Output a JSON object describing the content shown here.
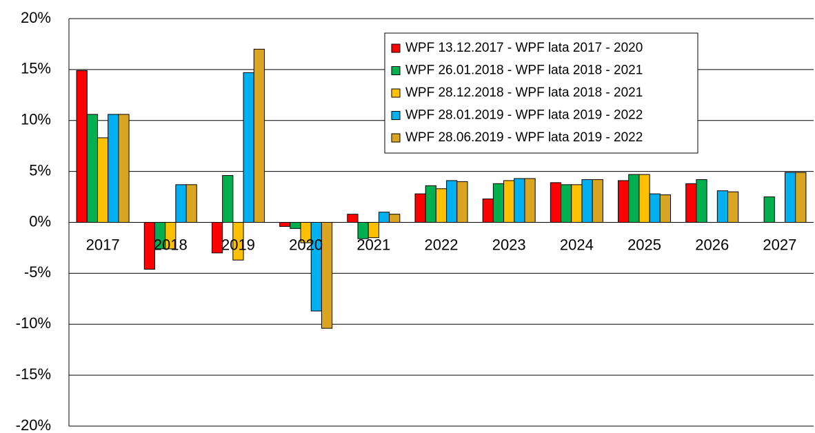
{
  "chart_data": {
    "type": "bar",
    "categories": [
      "2017",
      "2018",
      "2019",
      "2020",
      "2021",
      "2022",
      "2023",
      "2024",
      "2025",
      "2026",
      "2027"
    ],
    "series": [
      {
        "name": "WPF 13.12.2017 - WPF lata 2017 - 2020",
        "color": "#ff0000",
        "values": [
          14.9,
          -4.6,
          -3.0,
          -0.4,
          0.8,
          2.8,
          2.3,
          3.9,
          4.1,
          3.8,
          null
        ]
      },
      {
        "name": "WPF 26.01.2018 - WPF lata 2018 - 2021",
        "color": "#00b050",
        "values": [
          10.6,
          -2.6,
          4.6,
          -0.6,
          -1.6,
          3.6,
          3.8,
          3.7,
          4.7,
          4.2,
          2.5
        ]
      },
      {
        "name": "WPF 28.12.2018 - WPF lata 2018 - 2021",
        "color": "#ffc000",
        "values": [
          8.3,
          -2.6,
          -3.7,
          -2.0,
          -1.5,
          3.3,
          4.1,
          3.7,
          4.7,
          null,
          null
        ]
      },
      {
        "name": "WPF 28.01.2019 - WPF lata 2019 - 2022",
        "color": "#00b0f0",
        "values": [
          10.6,
          3.7,
          14.7,
          -8.7,
          1.0,
          4.1,
          4.3,
          4.2,
          2.8,
          3.1,
          4.9
        ]
      },
      {
        "name": "WPF 28.06.2019 - WPF lata 2019 - 2022",
        "color": "#daa520",
        "values": [
          10.6,
          3.7,
          17.0,
          -10.4,
          0.8,
          4.0,
          4.3,
          4.2,
          2.7,
          3.0,
          4.9
        ]
      }
    ],
    "ylim": [
      -20,
      20
    ],
    "yticks": [
      {
        "value": -20,
        "label": "-20%"
      },
      {
        "value": -15,
        "label": "-15%"
      },
      {
        "value": -10,
        "label": "-10%"
      },
      {
        "value": -5,
        "label": "-5%"
      },
      {
        "value": 0,
        "label": "0%"
      },
      {
        "value": 5,
        "label": "5%"
      },
      {
        "value": 10,
        "label": "10%"
      },
      {
        "value": 15,
        "label": "15%"
      },
      {
        "value": 20,
        "label": "20%"
      }
    ],
    "grid": true,
    "legend": "top-right"
  }
}
